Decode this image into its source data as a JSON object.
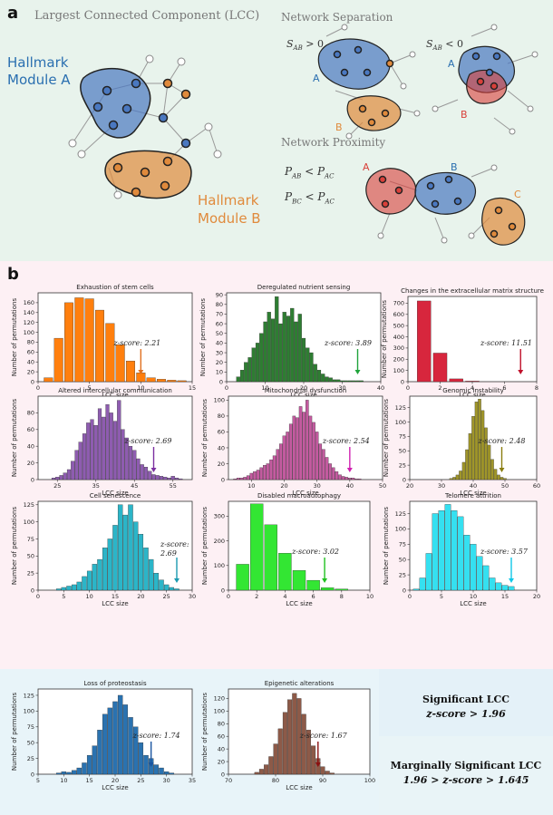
{
  "panel_a": {
    "label": "a",
    "lcc_title": "Largest Connected Component (LCC)",
    "module_a_line1": "Hallmark",
    "module_a_line2": "Module A",
    "module_b_line1": "Hallmark",
    "module_b_line2": "Module B",
    "separation_title": "Network Separation",
    "sab_pos": "S",
    "sab_sub": "AB",
    "sab_pos_rel": " > 0",
    "sab_neg_rel": " < 0",
    "proximity_title": "Network Proximity",
    "pab_lhs": "P",
    "pab_lhs_sub": "AB",
    "pbc_lhs_sub": "BC",
    "lt": " < ",
    "pac_sub": "AC",
    "node_a": "A",
    "node_b": "B",
    "node_c": "C",
    "colors": {
      "blue": "#4a78c0",
      "orange": "#e08a3c",
      "red": "#d9403a",
      "node_edge": "#222222"
    }
  },
  "panel_b": {
    "label": "b"
  },
  "legend": {
    "sig_title": "Significant LCC",
    "sig_rule": "z-score > 1.96",
    "marg_title": "Marginally Significant LCC",
    "marg_rule": "1.96 > z-score > 1.645"
  },
  "chart_data": [
    {
      "type": "bar",
      "title": "Exhaustion of stem cells",
      "xlabel": "LCC size",
      "ylabel": "Number of permutations",
      "color": "#ff7f0e",
      "x": [
        1,
        2,
        3,
        4,
        5,
        6,
        7,
        8,
        9,
        10,
        11,
        12,
        13,
        14
      ],
      "values": [
        8,
        88,
        160,
        170,
        168,
        145,
        118,
        75,
        42,
        18,
        8,
        5,
        3,
        2
      ],
      "xlim": [
        0,
        15
      ],
      "ylim": [
        0,
        180
      ],
      "xticks": [
        0,
        5,
        10,
        15
      ],
      "yticks": [
        0,
        20,
        40,
        60,
        80,
        100,
        120,
        140,
        160
      ],
      "bar_width": 0.85,
      "zscore": "z-score: 2.21",
      "arrow_x": 10,
      "arrow_color": "#e07020"
    },
    {
      "type": "bar",
      "title": "Deregulated nutrient sensing",
      "xlabel": "LCC size",
      "ylabel": "Number of permutations",
      "color": "#2e7d32",
      "x": [
        3,
        4,
        5,
        6,
        7,
        8,
        9,
        10,
        11,
        12,
        13,
        14,
        15,
        16,
        17,
        18,
        19,
        20,
        21,
        22,
        23,
        24,
        25,
        26,
        27,
        28,
        29,
        30,
        31,
        32,
        33,
        34,
        35
      ],
      "values": [
        5,
        12,
        20,
        25,
        35,
        40,
        50,
        62,
        72,
        65,
        88,
        60,
        72,
        68,
        76,
        62,
        70,
        45,
        35,
        30,
        18,
        12,
        8,
        5,
        4,
        2,
        2,
        1,
        1,
        1,
        1,
        1,
        1
      ],
      "xlim": [
        0,
        40
      ],
      "ylim": [
        0,
        92
      ],
      "xticks": [
        0,
        10,
        20,
        30,
        40
      ],
      "yticks": [
        0,
        10,
        20,
        30,
        40,
        50,
        60,
        70,
        80,
        90
      ],
      "bar_width": 0.9,
      "zscore": "z-score: 3.89",
      "arrow_x": 34,
      "arrow_color": "#1fa33a"
    },
    {
      "type": "bar",
      "title": "Changes in the extracellular matrix structure",
      "xlabel": "LCC size",
      "ylabel": "Number of permutations",
      "color": "#d7263d",
      "x": [
        1,
        2,
        3,
        4
      ],
      "values": [
        720,
        255,
        25,
        5
      ],
      "xlim": [
        0,
        8
      ],
      "ylim": [
        0,
        760
      ],
      "xticks": [
        0,
        2,
        4,
        6,
        8
      ],
      "yticks": [
        0,
        100,
        200,
        300,
        400,
        500,
        600,
        700
      ],
      "bar_width": 0.85,
      "zscore": "z-score: 11.51",
      "arrow_x": 7,
      "arrow_color": "#c0102a"
    },
    {
      "type": "bar",
      "title": "Altered intercellular communication",
      "xlabel": "LCC size",
      "ylabel": "Number of permutations",
      "color": "#8e5cb0",
      "x": [
        24,
        25,
        26,
        27,
        28,
        29,
        30,
        31,
        32,
        33,
        34,
        35,
        36,
        37,
        38,
        39,
        40,
        41,
        42,
        43,
        44,
        45,
        46,
        47,
        48,
        49,
        50,
        51,
        52,
        53,
        54,
        55,
        56,
        57
      ],
      "values": [
        2,
        3,
        5,
        8,
        12,
        22,
        35,
        45,
        55,
        68,
        72,
        65,
        85,
        75,
        90,
        80,
        70,
        95,
        60,
        50,
        40,
        35,
        25,
        18,
        15,
        10,
        6,
        5,
        4,
        3,
        2,
        4,
        2,
        1
      ],
      "xlim": [
        20,
        60
      ],
      "ylim": [
        0,
        100
      ],
      "xticks": [
        25,
        35,
        45,
        55
      ],
      "yticks": [
        0,
        20,
        40,
        60,
        80
      ],
      "bar_width": 0.9,
      "zscore": "z-score: 2.69",
      "arrow_x": 50,
      "arrow_color": "#7b2fa0"
    },
    {
      "type": "bar",
      "title": "Mitochondrial dysfunction",
      "xlabel": "LCC size",
      "ylabel": "Number of permutations",
      "color": "#c45ba0",
      "x": [
        5,
        6,
        7,
        8,
        9,
        10,
        11,
        12,
        13,
        14,
        15,
        16,
        17,
        18,
        19,
        20,
        21,
        22,
        23,
        24,
        25,
        26,
        27,
        28,
        29,
        30,
        31,
        32,
        33,
        34,
        35,
        36,
        37,
        38,
        39,
        40,
        41,
        42,
        43
      ],
      "values": [
        1,
        2,
        2,
        3,
        5,
        8,
        10,
        12,
        15,
        18,
        20,
        25,
        30,
        38,
        45,
        55,
        60,
        70,
        80,
        78,
        92,
        85,
        100,
        80,
        72,
        60,
        45,
        38,
        28,
        20,
        15,
        10,
        6,
        4,
        3,
        2,
        2,
        1,
        1
      ],
      "xlim": [
        3,
        50
      ],
      "ylim": [
        0,
        105
      ],
      "xticks": [
        10,
        20,
        30,
        40,
        50
      ],
      "yticks": [
        0,
        20,
        40,
        60,
        80,
        100
      ],
      "bar_width": 0.9,
      "zscore": "z-score: 2.54",
      "arrow_x": 40,
      "arrow_color": "#d020b0"
    },
    {
      "type": "bar",
      "title": "Genomic instability",
      "xlabel": "LCC size",
      "ylabel": "Number of permutations",
      "color": "#a0962a",
      "x": [
        33,
        34,
        35,
        36,
        37,
        38,
        39,
        40,
        41,
        42,
        43,
        44,
        45,
        46,
        47,
        48,
        49,
        50
      ],
      "values": [
        2,
        4,
        8,
        15,
        30,
        52,
        80,
        110,
        135,
        140,
        120,
        90,
        60,
        35,
        18,
        8,
        4,
        2
      ],
      "xlim": [
        20,
        60
      ],
      "ylim": [
        0,
        145
      ],
      "xticks": [
        20,
        30,
        40,
        50,
        60
      ],
      "yticks": [
        0,
        25,
        50,
        75,
        100,
        125
      ],
      "bar_width": 0.9,
      "zscore": "z-score: 2.48",
      "arrow_x": 49,
      "arrow_color": "#8a7d10"
    },
    {
      "type": "bar",
      "title": "Cell senescence",
      "xlabel": "LCC size",
      "ylabel": "Number of permutations",
      "color": "#2bb5c8",
      "x": [
        4,
        5,
        6,
        7,
        8,
        9,
        10,
        11,
        12,
        13,
        14,
        15,
        16,
        17,
        18,
        19,
        20,
        21,
        22,
        23,
        24,
        25,
        26,
        27
      ],
      "values": [
        2,
        4,
        6,
        8,
        12,
        20,
        28,
        38,
        45,
        62,
        75,
        95,
        125,
        110,
        125,
        100,
        82,
        62,
        45,
        25,
        15,
        8,
        4,
        2
      ],
      "xlim": [
        0,
        30
      ],
      "ylim": [
        0,
        130
      ],
      "xticks": [
        0,
        5,
        10,
        15,
        20,
        25,
        30
      ],
      "yticks": [
        0,
        25,
        50,
        75,
        100,
        125
      ],
      "bar_width": 0.9,
      "zscore": "z-score: 2.69",
      "arrow_x": 27,
      "arrow_color": "#1a9ab0"
    },
    {
      "type": "bar",
      "title": "Disabled macroautophagy",
      "xlabel": "LCC size",
      "ylabel": "Number of permutations",
      "color": "#33e633",
      "x": [
        1,
        2,
        3,
        4,
        5,
        6,
        7,
        8
      ],
      "values": [
        105,
        350,
        265,
        150,
        80,
        40,
        10,
        5
      ],
      "xlim": [
        0,
        10
      ],
      "ylim": [
        0,
        360
      ],
      "xticks": [
        0,
        2,
        4,
        6,
        8,
        10
      ],
      "yticks": [
        0,
        100,
        200,
        300
      ],
      "bar_width": 0.9,
      "zscore": "z-score: 3.02",
      "arrow_x": 6.8,
      "arrow_color": "#20c020"
    },
    {
      "type": "bar",
      "title": "Telomere attrition",
      "xlabel": "LCC size",
      "ylabel": "Number of permutations",
      "color": "#35e0f0",
      "x": [
        1,
        2,
        3,
        4,
        5,
        6,
        7,
        8,
        9,
        10,
        11,
        12,
        13,
        14,
        15,
        16
      ],
      "values": [
        2,
        20,
        60,
        125,
        130,
        140,
        130,
        120,
        90,
        75,
        55,
        40,
        20,
        12,
        8,
        6
      ],
      "xlim": [
        0,
        20
      ],
      "ylim": [
        0,
        145
      ],
      "xticks": [
        0,
        5,
        10,
        15,
        20
      ],
      "yticks": [
        0,
        25,
        50,
        75,
        100,
        125
      ],
      "bar_width": 0.9,
      "zscore": "z-score: 3.57",
      "arrow_x": 16,
      "arrow_color": "#10c8e8"
    },
    {
      "type": "bar",
      "title": "Loss of proteostasis",
      "xlabel": "LCC size",
      "ylabel": "Number of permutations",
      "color": "#2a72b0",
      "x": [
        9,
        10,
        11,
        12,
        13,
        14,
        15,
        16,
        17,
        18,
        19,
        20,
        21,
        22,
        23,
        24,
        25,
        26,
        27,
        28,
        29,
        30,
        31
      ],
      "values": [
        2,
        4,
        3,
        6,
        10,
        18,
        30,
        45,
        70,
        95,
        105,
        115,
        125,
        110,
        90,
        75,
        50,
        30,
        25,
        15,
        10,
        4,
        2
      ],
      "xlim": [
        5,
        35
      ],
      "ylim": [
        0,
        135
      ],
      "xticks": [
        5,
        10,
        15,
        20,
        25,
        30,
        35
      ],
      "yticks": [
        0,
        25,
        50,
        75,
        100,
        125
      ],
      "bar_width": 0.9,
      "zscore": "z-score: 1.74",
      "arrow_x": 27,
      "arrow_color": "#1a55a0"
    },
    {
      "type": "bar",
      "title": "Epigenetic alterations",
      "xlabel": "LCC size",
      "ylabel": "Number of permutations",
      "color": "#8d5a48",
      "x": [
        76,
        77,
        78,
        79,
        80,
        81,
        82,
        83,
        84,
        85,
        86,
        87,
        88,
        89,
        90,
        91,
        92
      ],
      "values": [
        3,
        8,
        15,
        28,
        48,
        72,
        98,
        118,
        128,
        120,
        95,
        70,
        45,
        25,
        12,
        5,
        2
      ],
      "xlim": [
        70,
        100
      ],
      "ylim": [
        0,
        135
      ],
      "xticks": [
        70,
        80,
        90,
        100
      ],
      "yticks": [
        0,
        20,
        40,
        60,
        80,
        100,
        120
      ],
      "bar_width": 0.9,
      "zscore": "z-score: 1.67",
      "arrow_x": 89,
      "arrow_color": "#8a1010"
    }
  ]
}
